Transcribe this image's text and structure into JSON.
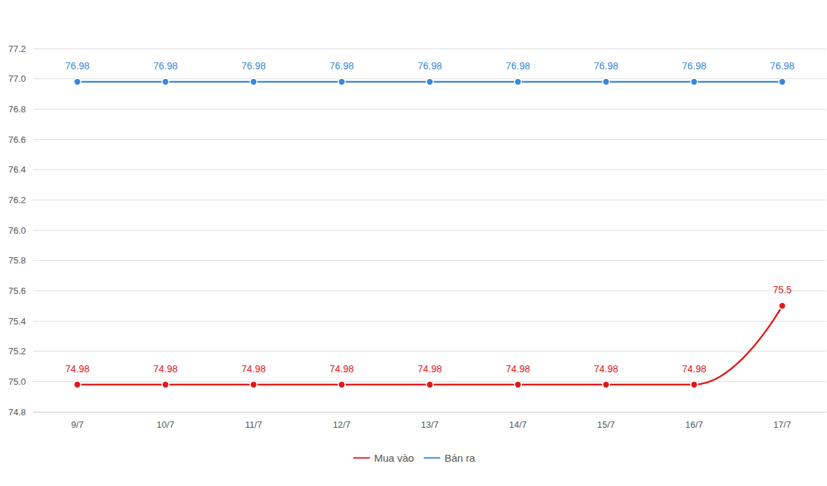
{
  "chart_data": {
    "type": "line",
    "categories": [
      "9/7",
      "10/7",
      "11/7",
      "12/7",
      "13/7",
      "14/7",
      "15/7",
      "16/7",
      "17/7"
    ],
    "series": [
      {
        "name": "Mua vào",
        "color": "#e01818",
        "values": [
          74.98,
          74.98,
          74.98,
          74.98,
          74.98,
          74.98,
          74.98,
          74.98,
          75.5
        ]
      },
      {
        "name": "Bán ra",
        "color": "#3a87d8",
        "values": [
          76.98,
          76.98,
          76.98,
          76.98,
          76.98,
          76.98,
          76.98,
          76.98,
          76.98
        ]
      }
    ],
    "ylim": [
      74.8,
      77.2
    ],
    "yticks": [
      74.8,
      {
        "value": 75,
        "label": "75.0"
      },
      75.2,
      75.4,
      75.6,
      75.8,
      {
        "value": 76,
        "label": "76.0"
      },
      76.2,
      76.4,
      76.6,
      76.8,
      {
        "value": 77,
        "label": "77.0"
      },
      77.2
    ],
    "grid": true,
    "data_labels": true,
    "legend": "bottom",
    "marker": "circle"
  }
}
